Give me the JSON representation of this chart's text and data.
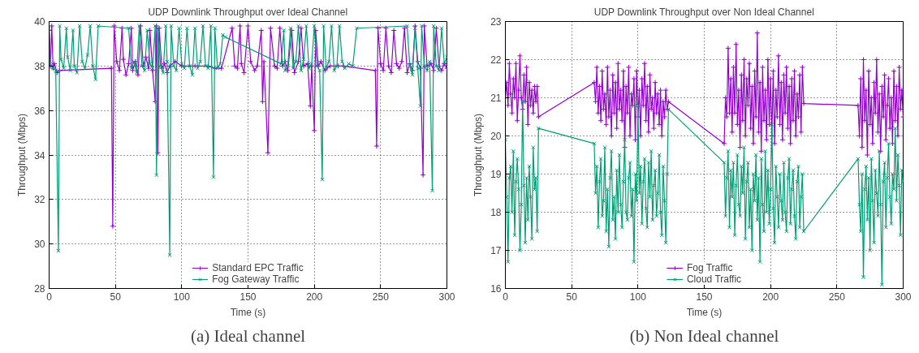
{
  "chart_data": [
    {
      "type": "line",
      "title": "UDP Downlink Throughput over Ideal Channel",
      "xlabel": "Time (s)",
      "ylabel": "Throughput (Mbps)",
      "annotations": [
        "(a) Ideal channel"
      ],
      "xlim": [
        0,
        300
      ],
      "ylim": [
        28,
        40
      ],
      "xticks": [
        0,
        50,
        100,
        150,
        200,
        250,
        300
      ],
      "yticks": [
        28,
        30,
        32,
        34,
        36,
        38,
        40
      ],
      "grid": true,
      "legend": "bottom",
      "line_style": "solid",
      "series": [
        {
          "name": "Standard EPC Traffic",
          "color": "#9400d3",
          "marker": "cross",
          "x": [
            0,
            1,
            2,
            3,
            4,
            6,
            8,
            47,
            48,
            49,
            51,
            53,
            55,
            56,
            58,
            60,
            62,
            63,
            65,
            67,
            69,
            71,
            73,
            75,
            76,
            78,
            80,
            81,
            82,
            83,
            85,
            87,
            89,
            91,
            95,
            100,
            110,
            120,
            125,
            130,
            138,
            140,
            142,
            144,
            145,
            147,
            150,
            152,
            155,
            157,
            160,
            161,
            162,
            165,
            167,
            170,
            172,
            174,
            176,
            178,
            180,
            183,
            185,
            188,
            190,
            192,
            195,
            197,
            198,
            200,
            201,
            203,
            205,
            208,
            212,
            218,
            222,
            246,
            247,
            248,
            250,
            252,
            254,
            256,
            258,
            260,
            262,
            264,
            266,
            268,
            270,
            272,
            274,
            276,
            278,
            280,
            282,
            283,
            285,
            288,
            290,
            292,
            294,
            296,
            298,
            300
          ],
          "values": [
            39.6,
            38.0,
            39.8,
            37.9,
            38.1,
            37.7,
            37.8,
            37.9,
            30.8,
            39.8,
            38.2,
            37.8,
            39.7,
            38.3,
            37.6,
            38.1,
            39.7,
            37.8,
            38.2,
            37.6,
            39.8,
            38.0,
            38.4,
            37.9,
            39.6,
            37.8,
            36.4,
            39.8,
            34.1,
            39.7,
            37.9,
            38.1,
            37.7,
            38.0,
            38.2,
            38.0,
            38.0,
            38.0,
            37.9,
            37.9,
            39.7,
            38.0,
            37.9,
            39.8,
            38.1,
            37.7,
            39.8,
            38.2,
            37.8,
            38.0,
            39.6,
            36.4,
            38.2,
            34.1,
            39.7,
            38.0,
            37.9,
            39.7,
            38.0,
            38.2,
            37.8,
            39.6,
            37.7,
            38.2,
            39.7,
            38.0,
            38.1,
            36.2,
            38.0,
            35.1,
            39.6,
            38.0,
            38.2,
            37.8,
            38.0,
            38.0,
            38.0,
            37.8,
            34.4,
            39.7,
            38.1,
            37.8,
            39.7,
            38.0,
            37.7,
            39.6,
            38.1,
            37.9,
            38.2,
            39.7,
            37.7,
            38.1,
            37.8,
            39.8,
            38.2,
            37.9,
            33.1,
            39.8,
            38.0,
            38.1,
            37.8,
            39.7,
            38.0,
            37.8,
            38.1,
            37.9
          ]
        },
        {
          "name": "Fog Gateway Traffic",
          "color": "#009e73",
          "marker": "x",
          "x": [
            0,
            1,
            3,
            5,
            7,
            8,
            9,
            11,
            13,
            14,
            16,
            18,
            19,
            21,
            23,
            25,
            27,
            29,
            31,
            33,
            35,
            37,
            60,
            62,
            64,
            66,
            68,
            70,
            72,
            74,
            76,
            78,
            80,
            81,
            82,
            84,
            86,
            88,
            89,
            91,
            92,
            94,
            96,
            98,
            100,
            102,
            104,
            106,
            108,
            110,
            112,
            114,
            116,
            118,
            120,
            122,
            124,
            125,
            127,
            129,
            131,
            133,
            175,
            177,
            178,
            180,
            182,
            184,
            186,
            188,
            190,
            192,
            194,
            196,
            198,
            200,
            202,
            204,
            206,
            207,
            209,
            211,
            213,
            215,
            217,
            219,
            221,
            223,
            226,
            229,
            232,
            270,
            272,
            274,
            276,
            278,
            280,
            281,
            283,
            285,
            287,
            289,
            290,
            292,
            294,
            296,
            298,
            300
          ],
          "values": [
            39.7,
            38.1,
            37.9,
            37.8,
            29.7,
            39.8,
            38.3,
            37.9,
            39.7,
            38.4,
            37.8,
            39.6,
            38.0,
            37.7,
            39.8,
            38.2,
            37.9,
            38.5,
            39.8,
            38.0,
            37.4,
            39.8,
            39.7,
            37.9,
            38.2,
            37.7,
            39.8,
            38.0,
            37.8,
            39.6,
            38.1,
            37.9,
            39.8,
            33.1,
            39.7,
            38.0,
            37.7,
            39.8,
            38.2,
            29.5,
            39.8,
            38.0,
            37.8,
            39.7,
            38.1,
            37.9,
            39.7,
            38.0,
            37.6,
            39.7,
            37.9,
            38.2,
            39.8,
            38.0,
            37.9,
            39.8,
            33.0,
            39.7,
            37.9,
            38.1,
            39.4,
            39.3,
            38.1,
            39.6,
            37.8,
            38.0,
            39.7,
            37.9,
            38.2,
            39.8,
            37.8,
            38.3,
            39.8,
            37.9,
            38.1,
            39.8,
            38.0,
            37.8,
            32.9,
            39.8,
            37.9,
            38.2,
            39.8,
            37.8,
            38.0,
            39.8,
            38.2,
            37.9,
            38.1,
            38.0,
            39.7,
            39.8,
            38.0,
            37.6,
            39.7,
            37.9,
            36.2,
            39.8,
            38.0,
            37.8,
            38.2,
            32.4,
            39.8,
            38.0,
            37.8,
            39.7,
            38.1,
            38.4
          ]
        }
      ]
    },
    {
      "type": "line",
      "title": "UDP Downlink Throughput over Non Ideal Channel",
      "xlabel": "Time (s)",
      "ylabel": "Throughput (Mbps)",
      "annotations": [
        "(b) Non Ideal channel"
      ],
      "xlim": [
        0,
        300
      ],
      "ylim": [
        16,
        23
      ],
      "xticks": [
        0,
        50,
        100,
        150,
        200,
        250,
        300
      ],
      "yticks": [
        16,
        17,
        18,
        19,
        20,
        21,
        22,
        23
      ],
      "grid": true,
      "legend": "bottom",
      "line_style": "solid",
      "series": [
        {
          "name": "Fog Traffic",
          "color": "#9400d3",
          "marker": "cross",
          "x": [
            0,
            1,
            2,
            3,
            4,
            5,
            6,
            7,
            8,
            9,
            10,
            11,
            12,
            13,
            14,
            15,
            16,
            17,
            18,
            19,
            20,
            21,
            22,
            23,
            24,
            25,
            67,
            68,
            69,
            70,
            71,
            72,
            73,
            74,
            75,
            76,
            77,
            78,
            79,
            80,
            81,
            82,
            83,
            84,
            85,
            86,
            87,
            88,
            89,
            90,
            91,
            92,
            93,
            94,
            95,
            96,
            97,
            98,
            99,
            100,
            101,
            102,
            103,
            104,
            105,
            106,
            107,
            108,
            109,
            110,
            111,
            112,
            113,
            114,
            115,
            116,
            117,
            118,
            119,
            120,
            121,
            122,
            123,
            165,
            166,
            167,
            168,
            169,
            170,
            171,
            172,
            173,
            174,
            175,
            176,
            177,
            178,
            179,
            180,
            181,
            182,
            183,
            184,
            185,
            186,
            187,
            188,
            189,
            190,
            191,
            192,
            193,
            194,
            195,
            196,
            197,
            198,
            199,
            200,
            201,
            202,
            203,
            204,
            205,
            206,
            207,
            208,
            209,
            210,
            211,
            212,
            213,
            214,
            215,
            216,
            217,
            218,
            219,
            220,
            221,
            222,
            223,
            224,
            225,
            266,
            267,
            268,
            269,
            270,
            271,
            272,
            273,
            274,
            275,
            276,
            277,
            278,
            279,
            280,
            281,
            282,
            283,
            284,
            285,
            286,
            287,
            288,
            289,
            290,
            291,
            292,
            293,
            294,
            295,
            296,
            297,
            298,
            299,
            300
          ],
          "values": [
            21.0,
            21.4,
            20.8,
            21.9,
            21.1,
            20.6,
            21.5,
            21.0,
            21.9,
            20.4,
            21.2,
            22.1,
            21.0,
            20.7,
            21.6,
            20.9,
            21.8,
            20.3,
            21.4,
            20.8,
            21.2,
            20.6,
            21.3,
            20.9,
            21.3,
            20.5,
            21.4,
            20.9,
            21.8,
            20.6,
            21.3,
            20.4,
            21.7,
            20.7,
            21.1,
            20.3,
            21.8,
            20.5,
            21.2,
            20.0,
            21.6,
            20.6,
            21.4,
            20.2,
            21.9,
            20.7,
            21.2,
            20.4,
            21.7,
            19.7,
            21.3,
            20.6,
            21.8,
            20.0,
            21.1,
            20.8,
            21.5,
            19.9,
            21.7,
            20.5,
            21.2,
            20.0,
            21.5,
            20.8,
            21.9,
            20.4,
            21.3,
            20.1,
            21.6,
            20.7,
            21.0,
            20.2,
            21.4,
            20.6,
            21.1,
            20.3,
            21.2,
            20.0,
            20.9,
            20.5,
            21.2,
            20.7,
            20.9,
            19.8,
            21.0,
            20.5,
            22.3,
            20.6,
            21.5,
            20.1,
            21.8,
            20.6,
            22.4,
            20.3,
            21.2,
            19.7,
            21.6,
            20.4,
            22.0,
            20.0,
            21.5,
            20.8,
            21.9,
            20.2,
            21.3,
            19.8,
            21.7,
            20.5,
            22.7,
            20.1,
            21.4,
            19.6,
            21.8,
            20.4,
            21.2,
            19.9,
            22.0,
            20.3,
            21.5,
            20.0,
            21.7,
            19.8,
            21.2,
            20.5,
            22.1,
            20.3,
            21.4,
            19.9,
            21.6,
            20.6,
            21.8,
            20.2,
            21.3,
            19.8,
            21.5,
            20.4,
            21.7,
            20.0,
            21.1,
            20.5,
            21.6,
            20.1,
            21.8,
            20.85,
            20.8,
            20.0,
            21.5,
            19.7,
            22.0,
            20.4,
            21.2,
            19.5,
            21.7,
            20.3,
            21.0,
            19.8,
            21.4,
            20.6,
            22.0,
            20.1,
            21.1,
            19.6,
            21.3,
            20.5,
            21.6,
            19.9,
            20.8,
            21.5,
            20.2,
            21.0,
            19.8,
            21.7,
            20.4,
            21.3,
            20.0,
            21.8,
            20.7,
            21.2,
            20.5
          ]
        },
        {
          "name": "Cloud Traffic",
          "color": "#009e73",
          "marker": "x",
          "x": [
            0,
            1,
            2,
            3,
            4,
            5,
            6,
            7,
            8,
            9,
            10,
            11,
            12,
            13,
            14,
            15,
            16,
            17,
            18,
            19,
            20,
            21,
            22,
            23,
            24,
            25,
            67,
            68,
            69,
            70,
            71,
            72,
            73,
            74,
            75,
            76,
            77,
            78,
            79,
            80,
            81,
            82,
            83,
            84,
            85,
            86,
            87,
            88,
            89,
            90,
            91,
            92,
            93,
            94,
            95,
            96,
            97,
            98,
            99,
            100,
            101,
            102,
            103,
            104,
            105,
            106,
            107,
            108,
            109,
            110,
            111,
            112,
            113,
            114,
            115,
            116,
            117,
            118,
            119,
            120,
            121,
            122,
            123,
            165,
            166,
            167,
            168,
            169,
            170,
            171,
            172,
            173,
            174,
            175,
            176,
            177,
            178,
            179,
            180,
            181,
            182,
            183,
            184,
            185,
            186,
            187,
            188,
            189,
            190,
            191,
            192,
            193,
            194,
            195,
            196,
            197,
            198,
            199,
            200,
            201,
            202,
            203,
            204,
            205,
            206,
            207,
            208,
            209,
            210,
            211,
            212,
            213,
            214,
            215,
            216,
            217,
            218,
            219,
            220,
            221,
            222,
            223,
            224,
            225,
            266,
            267,
            268,
            269,
            270,
            271,
            272,
            273,
            274,
            275,
            276,
            277,
            278,
            279,
            280,
            281,
            282,
            283,
            284,
            285,
            286,
            287,
            288,
            289,
            290,
            291,
            292,
            293,
            294,
            295,
            296,
            297,
            298,
            299,
            300
          ],
          "values": [
            19.9,
            18.4,
            16.7,
            18.9,
            19.2,
            18.0,
            19.6,
            17.4,
            18.8,
            19.4,
            18.6,
            17.0,
            18.2,
            20.9,
            18.7,
            17.2,
            18.9,
            17.8,
            19.2,
            18.4,
            17.3,
            19.7,
            18.6,
            18.9,
            17.5,
            20.2,
            19.8,
            18.5,
            19.2,
            17.6,
            18.8,
            19.4,
            17.9,
            18.3,
            19.7,
            17.5,
            18.6,
            17.1,
            18.9,
            19.6,
            17.8,
            18.4,
            17.3,
            19.1,
            18.0,
            19.5,
            18.2,
            17.6,
            18.8,
            19.9,
            18.0,
            17.8,
            18.9,
            19.3,
            17.9,
            18.6,
            16.7,
            19.0,
            18.3,
            20.8,
            18.5,
            19.2,
            17.7,
            18.8,
            19.4,
            18.1,
            17.6,
            19.3,
            18.4,
            19.6,
            17.8,
            18.7,
            19.1,
            17.9,
            18.5,
            19.5,
            18.0,
            17.4,
            19.2,
            18.3,
            17.2,
            19.0,
            20.7,
            19.3,
            17.9,
            18.9,
            19.6,
            17.6,
            19.1,
            18.4,
            19.3,
            17.4,
            18.7,
            19.5,
            18.2,
            17.9,
            19.2,
            18.5,
            19.7,
            17.3,
            18.8,
            19.3,
            17.6,
            18.6,
            17.0,
            19.0,
            18.3,
            19.5,
            17.8,
            18.9,
            16.7,
            19.4,
            18.2,
            17.5,
            19.6,
            18.0,
            19.1,
            17.7,
            18.6,
            20.3,
            18.1,
            17.2,
            19.2,
            18.4,
            17.6,
            19.0,
            18.3,
            17.8,
            19.3,
            18.0,
            17.5,
            18.9,
            19.4,
            17.7,
            18.6,
            19.1,
            17.9,
            17.3,
            18.8,
            19.2,
            17.6,
            18.4,
            19.0,
            17.5,
            19.4,
            18.2,
            17.5,
            19.0,
            16.3,
            18.6,
            19.2,
            17.8,
            18.9,
            17.0,
            19.4,
            18.3,
            17.2,
            19.1,
            18.5,
            17.9,
            19.6,
            18.2,
            16.1,
            18.8,
            19.3,
            17.6,
            18.9,
            19.8,
            18.4,
            17.7,
            19.0,
            18.6,
            20.2,
            18.3,
            19.5,
            18.7,
            17.4,
            19.1,
            18.8
          ]
        }
      ]
    }
  ]
}
